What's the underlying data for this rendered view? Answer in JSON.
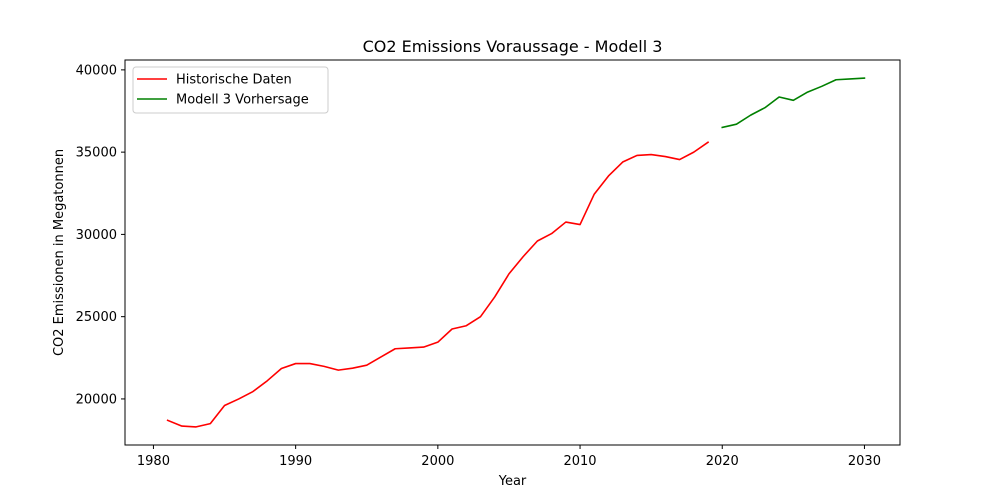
{
  "chart_data": {
    "type": "line",
    "title": "CO2 Emissions Voraussage - Modell 3",
    "xlabel": "Year",
    "ylabel": "CO2 Emissionen in Megatonnen",
    "xlim": [
      1978,
      2032.5
    ],
    "ylim": [
      17200,
      40600
    ],
    "xticks": [
      1980,
      1990,
      2000,
      2010,
      2020,
      2030
    ],
    "yticks": [
      20000,
      25000,
      30000,
      35000,
      40000
    ],
    "grid": false,
    "legend_position": "top-left",
    "series": [
      {
        "name": "Historische Daten",
        "color": "#ff0000",
        "x": [
          1981,
          1982,
          1983,
          1984,
          1985,
          1986,
          1987,
          1988,
          1989,
          1990,
          1991,
          1992,
          1993,
          1994,
          1995,
          1996,
          1997,
          1998,
          1999,
          2000,
          2001,
          2002,
          2003,
          2004,
          2005,
          2006,
          2007,
          2008,
          2009,
          2010,
          2011,
          2012,
          2013,
          2014,
          2015,
          2016,
          2017,
          2018,
          2019
        ],
        "y": [
          18700,
          18350,
          18300,
          18500,
          19600,
          20000,
          20450,
          21100,
          21850,
          22150,
          22150,
          21980,
          21750,
          21870,
          22050,
          22550,
          23050,
          23100,
          23150,
          23450,
          24250,
          24450,
          25000,
          26200,
          27600,
          28650,
          29600,
          30050,
          30750,
          30600,
          32450,
          33550,
          34400,
          34800,
          34850,
          34730,
          34550,
          35000,
          35600
        ]
      },
      {
        "name": "Modell 3 Vorhersage",
        "color": "#008000",
        "x": [
          2020,
          2021,
          2022,
          2023,
          2024,
          2025,
          2026,
          2027,
          2028,
          2029,
          2030
        ],
        "y": [
          36500,
          36700,
          37250,
          37700,
          38350,
          38150,
          38650,
          39000,
          39400,
          39450,
          39500
        ]
      }
    ]
  }
}
